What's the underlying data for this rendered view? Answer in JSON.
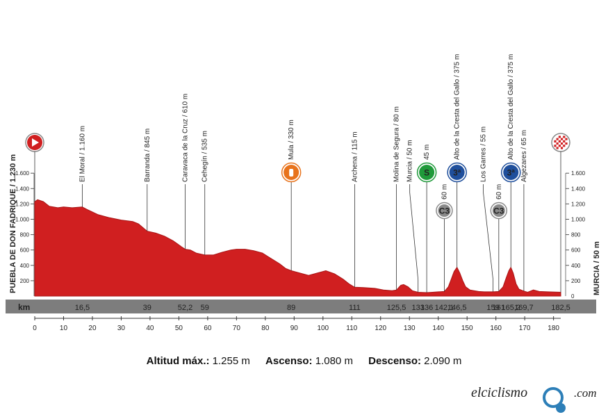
{
  "chart_data": {
    "type": "area",
    "x_unit": "km",
    "xlim": [
      0,
      182.5
    ],
    "ylim": [
      0,
      1700
    ],
    "x_ticks": [
      0,
      10,
      20,
      30,
      40,
      50,
      60,
      70,
      80,
      90,
      100,
      110,
      120,
      130,
      140,
      150,
      160,
      170,
      180
    ],
    "y_ticks": [
      200,
      400,
      600,
      800,
      1000,
      1200,
      1400,
      1600
    ],
    "y_tick_labels": [
      "200",
      "400",
      "600",
      "800",
      "1.000",
      "1.200",
      "1.400",
      "1.600"
    ],
    "right_axis_zero": "0",
    "profile": [
      [
        0,
        1230
      ],
      [
        1,
        1255
      ],
      [
        3,
        1230
      ],
      [
        5,
        1170
      ],
      [
        8,
        1150
      ],
      [
        10,
        1160
      ],
      [
        13,
        1150
      ],
      [
        16.5,
        1160
      ],
      [
        18,
        1130
      ],
      [
        22,
        1060
      ],
      [
        26,
        1020
      ],
      [
        30,
        990
      ],
      [
        34,
        970
      ],
      [
        36,
        940
      ],
      [
        39,
        845
      ],
      [
        42,
        820
      ],
      [
        45,
        780
      ],
      [
        48,
        720
      ],
      [
        51,
        640
      ],
      [
        52.2,
        610
      ],
      [
        54,
        600
      ],
      [
        56,
        560
      ],
      [
        59,
        535
      ],
      [
        62,
        535
      ],
      [
        65,
        570
      ],
      [
        68,
        600
      ],
      [
        70,
        610
      ],
      [
        73,
        610
      ],
      [
        76,
        590
      ],
      [
        79,
        560
      ],
      [
        82,
        490
      ],
      [
        85,
        420
      ],
      [
        87,
        360
      ],
      [
        89,
        330
      ],
      [
        92,
        300
      ],
      [
        95,
        270
      ],
      [
        98,
        300
      ],
      [
        101,
        330
      ],
      [
        104,
        290
      ],
      [
        107,
        220
      ],
      [
        109,
        160
      ],
      [
        111,
        115
      ],
      [
        114,
        110
      ],
      [
        118,
        100
      ],
      [
        121,
        80
      ],
      [
        124,
        70
      ],
      [
        125.5,
        80
      ],
      [
        127,
        140
      ],
      [
        128,
        150
      ],
      [
        129.5,
        120
      ],
      [
        131,
        70
      ],
      [
        133,
        50
      ],
      [
        136,
        45
      ],
      [
        138,
        50
      ],
      [
        140,
        55
      ],
      [
        142.1,
        60
      ],
      [
        143.5,
        120
      ],
      [
        144.5,
        220
      ],
      [
        145.5,
        320
      ],
      [
        146.5,
        375
      ],
      [
        147.5,
        300
      ],
      [
        148.5,
        200
      ],
      [
        149.5,
        120
      ],
      [
        151,
        80
      ],
      [
        154,
        60
      ],
      [
        156,
        55
      ],
      [
        159,
        55
      ],
      [
        161,
        60
      ],
      [
        162.5,
        120
      ],
      [
        163.5,
        230
      ],
      [
        164.5,
        330
      ],
      [
        165.2,
        375
      ],
      [
        166,
        300
      ],
      [
        167,
        160
      ],
      [
        168,
        90
      ],
      [
        169.7,
        65
      ],
      [
        171,
        50
      ],
      [
        173,
        80
      ],
      [
        175,
        60
      ],
      [
        178,
        55
      ],
      [
        182.5,
        50
      ]
    ],
    "x_label": "km",
    "km_markers": [
      "16,5",
      "39",
      "52,2",
      "59",
      "89",
      "111",
      "125,5",
      "133",
      "136",
      "142,1",
      "146,5",
      "159",
      "161",
      "165,2",
      "169,7",
      "182,5"
    ],
    "start": {
      "name": "PUEBLA DE DON FADRIQUE / 1.230 m",
      "x": 0
    },
    "finish": {
      "name": "MURCIA / 50 m",
      "x": 182.5
    },
    "waypoints": [
      {
        "label": "El Moral / 1.160 m",
        "x": 16.5,
        "elev": 1160
      },
      {
        "label": "Barranda / 845 m",
        "x": 39,
        "elev": 845
      },
      {
        "label": "Caravaca de la Cruz / 610 m",
        "x": 52.2,
        "elev": 610
      },
      {
        "label": "Cehegín / 535 m",
        "x": 59,
        "elev": 535
      },
      {
        "label": "Mula / 330 m",
        "x": 89,
        "elev": 330,
        "icon": "feed-zone-icon"
      },
      {
        "label": "Archena / 115 m",
        "x": 111,
        "elev": 115
      },
      {
        "label": "Molina de Segura / 80 m",
        "x": 125.5,
        "elev": 80
      },
      {
        "label": "Murcia / 50 m",
        "x": 133,
        "elev": 50
      },
      {
        "label": "45 m",
        "x": 136,
        "elev": 45,
        "icon": "sprint-icon",
        "icon_text": "S"
      },
      {
        "label": "60 m",
        "x": 142.1,
        "elev": 60,
        "icon": "intermediate-icon",
        "icon_text": "C3"
      },
      {
        "label": "Alto de la Cresta del Gallo / 375 m",
        "x": 146.5,
        "elev": 375,
        "icon": "climb-icon",
        "icon_text": "3ª"
      },
      {
        "label": "Los Garres / 55 m",
        "x": 159,
        "elev": 55
      },
      {
        "label": "60 m",
        "x": 161,
        "elev": 60,
        "icon": "intermediate-icon",
        "icon_text": "C3"
      },
      {
        "label": "Alto de la Cresta del Gallo / 375 m",
        "x": 165.2,
        "elev": 375,
        "icon": "climb-icon",
        "icon_text": "3ª"
      },
      {
        "label": "Algezares / 65 m",
        "x": 169.7,
        "elev": 65
      }
    ],
    "colors": {
      "profile": "#d01f20",
      "profile_dark": "#a81516",
      "band": "#7d7d7d",
      "sprint": "#1f9a3a",
      "climb": "#1f4f9c",
      "feed": "#e8731c",
      "start": "#d01f20",
      "intermediate": "#8a8a8a"
    },
    "grid": false
  },
  "stats": {
    "alt_label": "Altitud máx.:",
    "alt_value": "1.255 m",
    "asc_label": "Ascenso:",
    "asc_value": "1.080 m",
    "desc_label": "Descenso:",
    "desc_value": "2.090 m"
  },
  "brand": {
    "text": "elciclismo",
    "suffix": ".com"
  }
}
